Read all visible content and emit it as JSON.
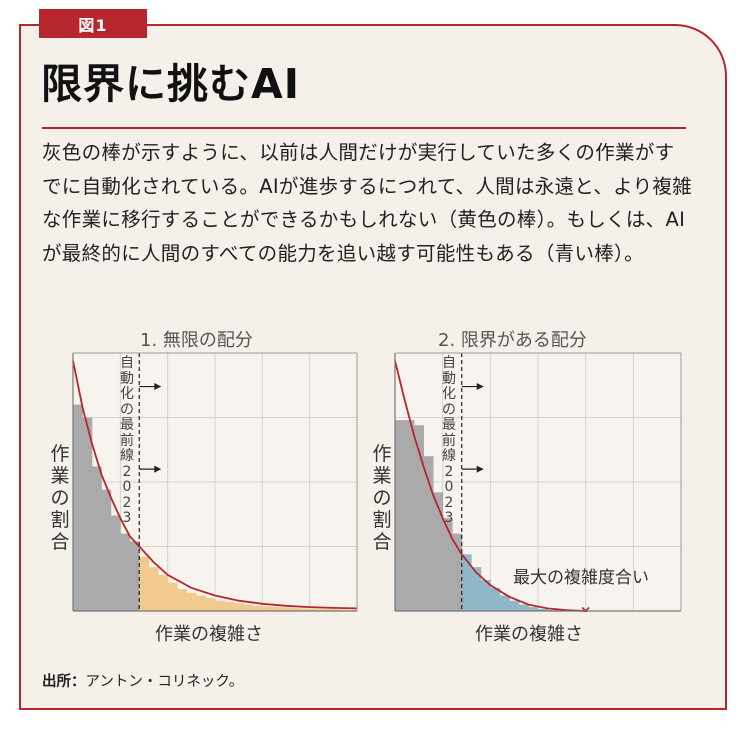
{
  "figure_tag": "図1",
  "title": "限界に挑むAI",
  "description": "灰色の棒が示すように、以前は人間だけが実行していた多くの作業がすでに自動化されている。AIが進歩するにつれて、人間は永遠と、より複雑な作業に移行することができるかもしれない（黄色の棒）。もしくは、AIが最終的に人間のすべての能力を追い越す可能性もある（青い棒）。",
  "source": {
    "label": "出所：",
    "text": "アントン・コリネック。"
  },
  "colors": {
    "accent": "#b7262d",
    "background": "#f5f0ea",
    "automated_bar": "#aaaaaa",
    "unbounded_bar": "#f2c98e",
    "bounded_bar": "#8fb9c8",
    "curve": "#b7262d"
  },
  "chart_data": [
    {
      "type": "bar",
      "title": "1. 無限の配分",
      "xlabel": "作業の複雑さ",
      "ylabel": "作業の割合",
      "frontier_label": "自動化の最前線2023",
      "grid": true,
      "xlim": [
        0,
        6
      ],
      "ylim": [
        0,
        1
      ],
      "frontier_x": 1.4,
      "bars": [
        {
          "x": 0.0,
          "value": 0.8,
          "group": "automated"
        },
        {
          "x": 0.2,
          "value": 0.75,
          "group": "automated"
        },
        {
          "x": 0.4,
          "value": 0.56,
          "group": "automated"
        },
        {
          "x": 0.6,
          "value": 0.47,
          "group": "automated"
        },
        {
          "x": 0.8,
          "value": 0.37,
          "group": "automated"
        },
        {
          "x": 1.0,
          "value": 0.3,
          "group": "automated"
        },
        {
          "x": 1.2,
          "value": 0.27,
          "group": "automated"
        },
        {
          "x": 1.4,
          "value": 0.21,
          "group": "future"
        },
        {
          "x": 1.6,
          "value": 0.17,
          "group": "future"
        },
        {
          "x": 1.8,
          "value": 0.14,
          "group": "future"
        },
        {
          "x": 2.0,
          "value": 0.11,
          "group": "future"
        },
        {
          "x": 2.2,
          "value": 0.085,
          "group": "future"
        },
        {
          "x": 2.4,
          "value": 0.07,
          "group": "future"
        },
        {
          "x": 2.6,
          "value": 0.06,
          "group": "future"
        },
        {
          "x": 2.8,
          "value": 0.05,
          "group": "future"
        },
        {
          "x": 3.0,
          "value": 0.04,
          "group": "future"
        },
        {
          "x": 3.2,
          "value": 0.035,
          "group": "future"
        },
        {
          "x": 3.4,
          "value": 0.03,
          "group": "future"
        },
        {
          "x": 3.6,
          "value": 0.025,
          "group": "future"
        },
        {
          "x": 3.8,
          "value": 0.02,
          "group": "future"
        },
        {
          "x": 4.0,
          "value": 0.018,
          "group": "future"
        },
        {
          "x": 4.2,
          "value": 0.016,
          "group": "future"
        },
        {
          "x": 4.4,
          "value": 0.014,
          "group": "future"
        },
        {
          "x": 4.6,
          "value": 0.012,
          "group": "future"
        },
        {
          "x": 4.8,
          "value": 0.01,
          "group": "future"
        },
        {
          "x": 5.0,
          "value": 0.009,
          "group": "future"
        },
        {
          "x": 5.2,
          "value": 0.008,
          "group": "future"
        },
        {
          "x": 5.4,
          "value": 0.007,
          "group": "future"
        },
        {
          "x": 5.6,
          "value": 0.006,
          "group": "future"
        },
        {
          "x": 5.8,
          "value": 0.005,
          "group": "future"
        }
      ],
      "curve": [
        [
          0.0,
          0.97
        ],
        [
          0.2,
          0.79
        ],
        [
          0.4,
          0.65
        ],
        [
          0.6,
          0.53
        ],
        [
          0.8,
          0.44
        ],
        [
          1.0,
          0.36
        ],
        [
          1.2,
          0.29
        ],
        [
          1.4,
          0.25
        ],
        [
          1.7,
          0.19
        ],
        [
          2.0,
          0.14
        ],
        [
          2.5,
          0.09
        ],
        [
          3.0,
          0.06
        ],
        [
          3.5,
          0.04
        ],
        [
          4.0,
          0.028
        ],
        [
          4.5,
          0.02
        ],
        [
          5.0,
          0.015
        ],
        [
          5.5,
          0.012
        ],
        [
          6.0,
          0.01
        ]
      ]
    },
    {
      "type": "bar",
      "title": "2. 限界がある配分",
      "xlabel": "作業の複雑さ",
      "ylabel": "作業の割合",
      "frontier_label": "自動化の最前線2023",
      "annotation": "最大の複雑度合い",
      "grid": true,
      "xlim": [
        0,
        6
      ],
      "ylim": [
        0,
        1
      ],
      "frontier_x": 1.4,
      "max_complexity_x": 4.0,
      "bars": [
        {
          "x": 0.0,
          "value": 0.74,
          "group": "automated"
        },
        {
          "x": 0.2,
          "value": 0.74,
          "group": "automated"
        },
        {
          "x": 0.4,
          "value": 0.72,
          "group": "automated"
        },
        {
          "x": 0.6,
          "value": 0.6,
          "group": "automated"
        },
        {
          "x": 0.8,
          "value": 0.46,
          "group": "automated"
        },
        {
          "x": 1.0,
          "value": 0.36,
          "group": "automated"
        },
        {
          "x": 1.2,
          "value": 0.3,
          "group": "automated"
        },
        {
          "x": 1.4,
          "value": 0.22,
          "group": "future"
        },
        {
          "x": 1.6,
          "value": 0.17,
          "group": "future"
        },
        {
          "x": 1.8,
          "value": 0.12,
          "group": "future"
        },
        {
          "x": 2.0,
          "value": 0.09,
          "group": "future"
        },
        {
          "x": 2.2,
          "value": 0.06,
          "group": "future"
        },
        {
          "x": 2.4,
          "value": 0.04,
          "group": "future"
        },
        {
          "x": 2.6,
          "value": 0.025,
          "group": "future"
        },
        {
          "x": 2.8,
          "value": 0.015,
          "group": "future"
        },
        {
          "x": 3.0,
          "value": 0.008,
          "group": "future"
        },
        {
          "x": 3.2,
          "value": 0.004,
          "group": "future"
        }
      ],
      "curve": [
        [
          0.0,
          0.97
        ],
        [
          0.2,
          0.82
        ],
        [
          0.4,
          0.68
        ],
        [
          0.6,
          0.56
        ],
        [
          0.8,
          0.45
        ],
        [
          1.0,
          0.36
        ],
        [
          1.2,
          0.28
        ],
        [
          1.4,
          0.22
        ],
        [
          1.7,
          0.15
        ],
        [
          2.0,
          0.1
        ],
        [
          2.4,
          0.055
        ],
        [
          2.8,
          0.025
        ],
        [
          3.2,
          0.01
        ],
        [
          3.6,
          0.003
        ],
        [
          4.0,
          0.0
        ]
      ]
    }
  ]
}
